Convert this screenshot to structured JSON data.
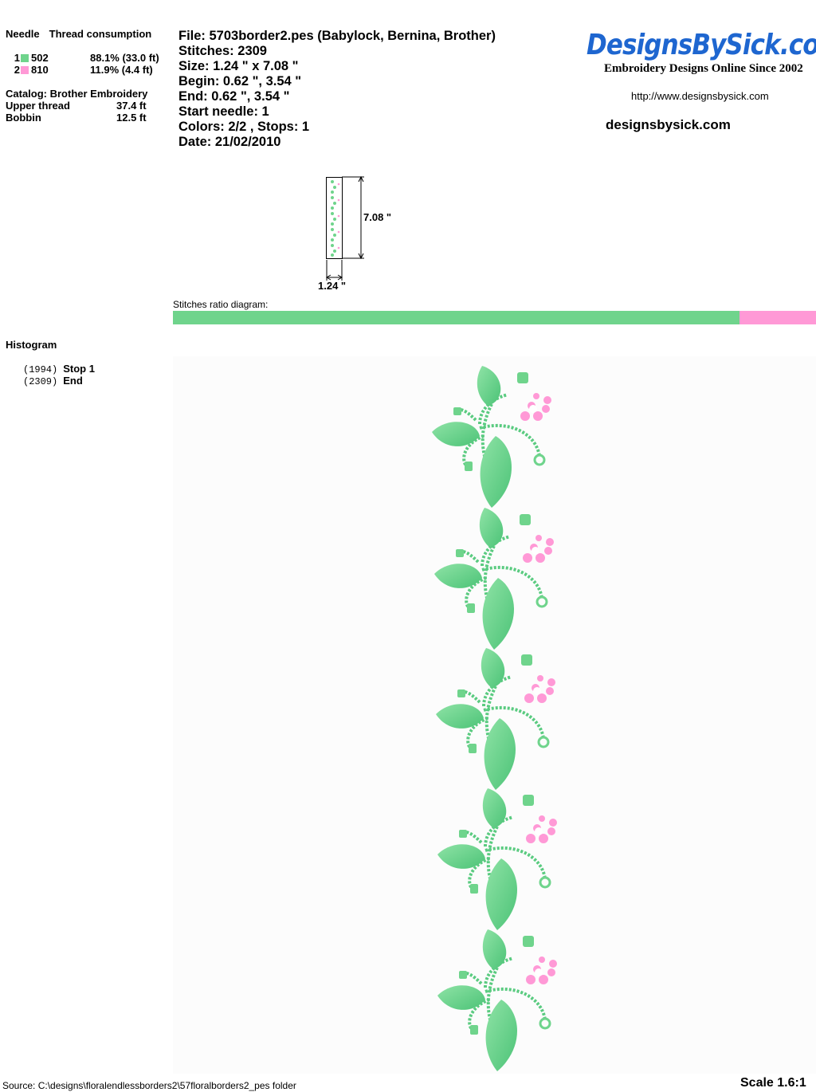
{
  "colors": {
    "green": "#6fd48c",
    "pink": "#ff99d6",
    "logo_blue": "#1e66d0"
  },
  "left": {
    "needle_header": "Needle",
    "thread_header": "Thread consumption",
    "needles": [
      {
        "num": "1",
        "code": "502",
        "pct": "88.1% (33.0 ft)",
        "color": "#6fd48c"
      },
      {
        "num": "2",
        "code": "810",
        "pct": "11.9% (4.4 ft)",
        "color": "#ff99d6"
      }
    ],
    "catalog": "Catalog: Brother Embroidery",
    "upper_thread_label": "Upper thread",
    "upper_thread_value": "37.4 ft",
    "bobbin_label": "Bobbin",
    "bobbin_value": "12.5 ft",
    "histogram_title": "Histogram",
    "histogram": [
      {
        "count": "(1994)",
        "label": "Stop 1"
      },
      {
        "count": "(2309)",
        "label": "End"
      }
    ]
  },
  "file_info": {
    "file": "File: 5703border2.pes  (Babylock, Bernina, Brother)",
    "stitches": "Stitches: 2309",
    "size": "Size: 1.24 \" x 7.08 \"",
    "begin": "Begin: 0.62 \", 3.54 \"",
    "end": "End: 0.62 \", 3.54 \"",
    "start_needle": "Start needle: 1",
    "colors": "Colors: 2/2 , Stops: 1",
    "date": "Date: 21/02/2010"
  },
  "logo": {
    "text": "DesignsBySick.com",
    "tagline": "Embroidery Designs Online Since 2002",
    "url": "http://www.designsbysick.com",
    "site": "designsbysick.com"
  },
  "thumbnail": {
    "height_label": "7.08 \"",
    "width_label": "1.24 \""
  },
  "ratio": {
    "label": "Stitches ratio diagram:",
    "green_fraction": 0.881,
    "pink_fraction": 0.119
  },
  "footer": {
    "source": "Source: C:\\designs\\floralendlessborders2\\57floralborders2_pes folder",
    "scale": "Scale 1.6:1"
  }
}
